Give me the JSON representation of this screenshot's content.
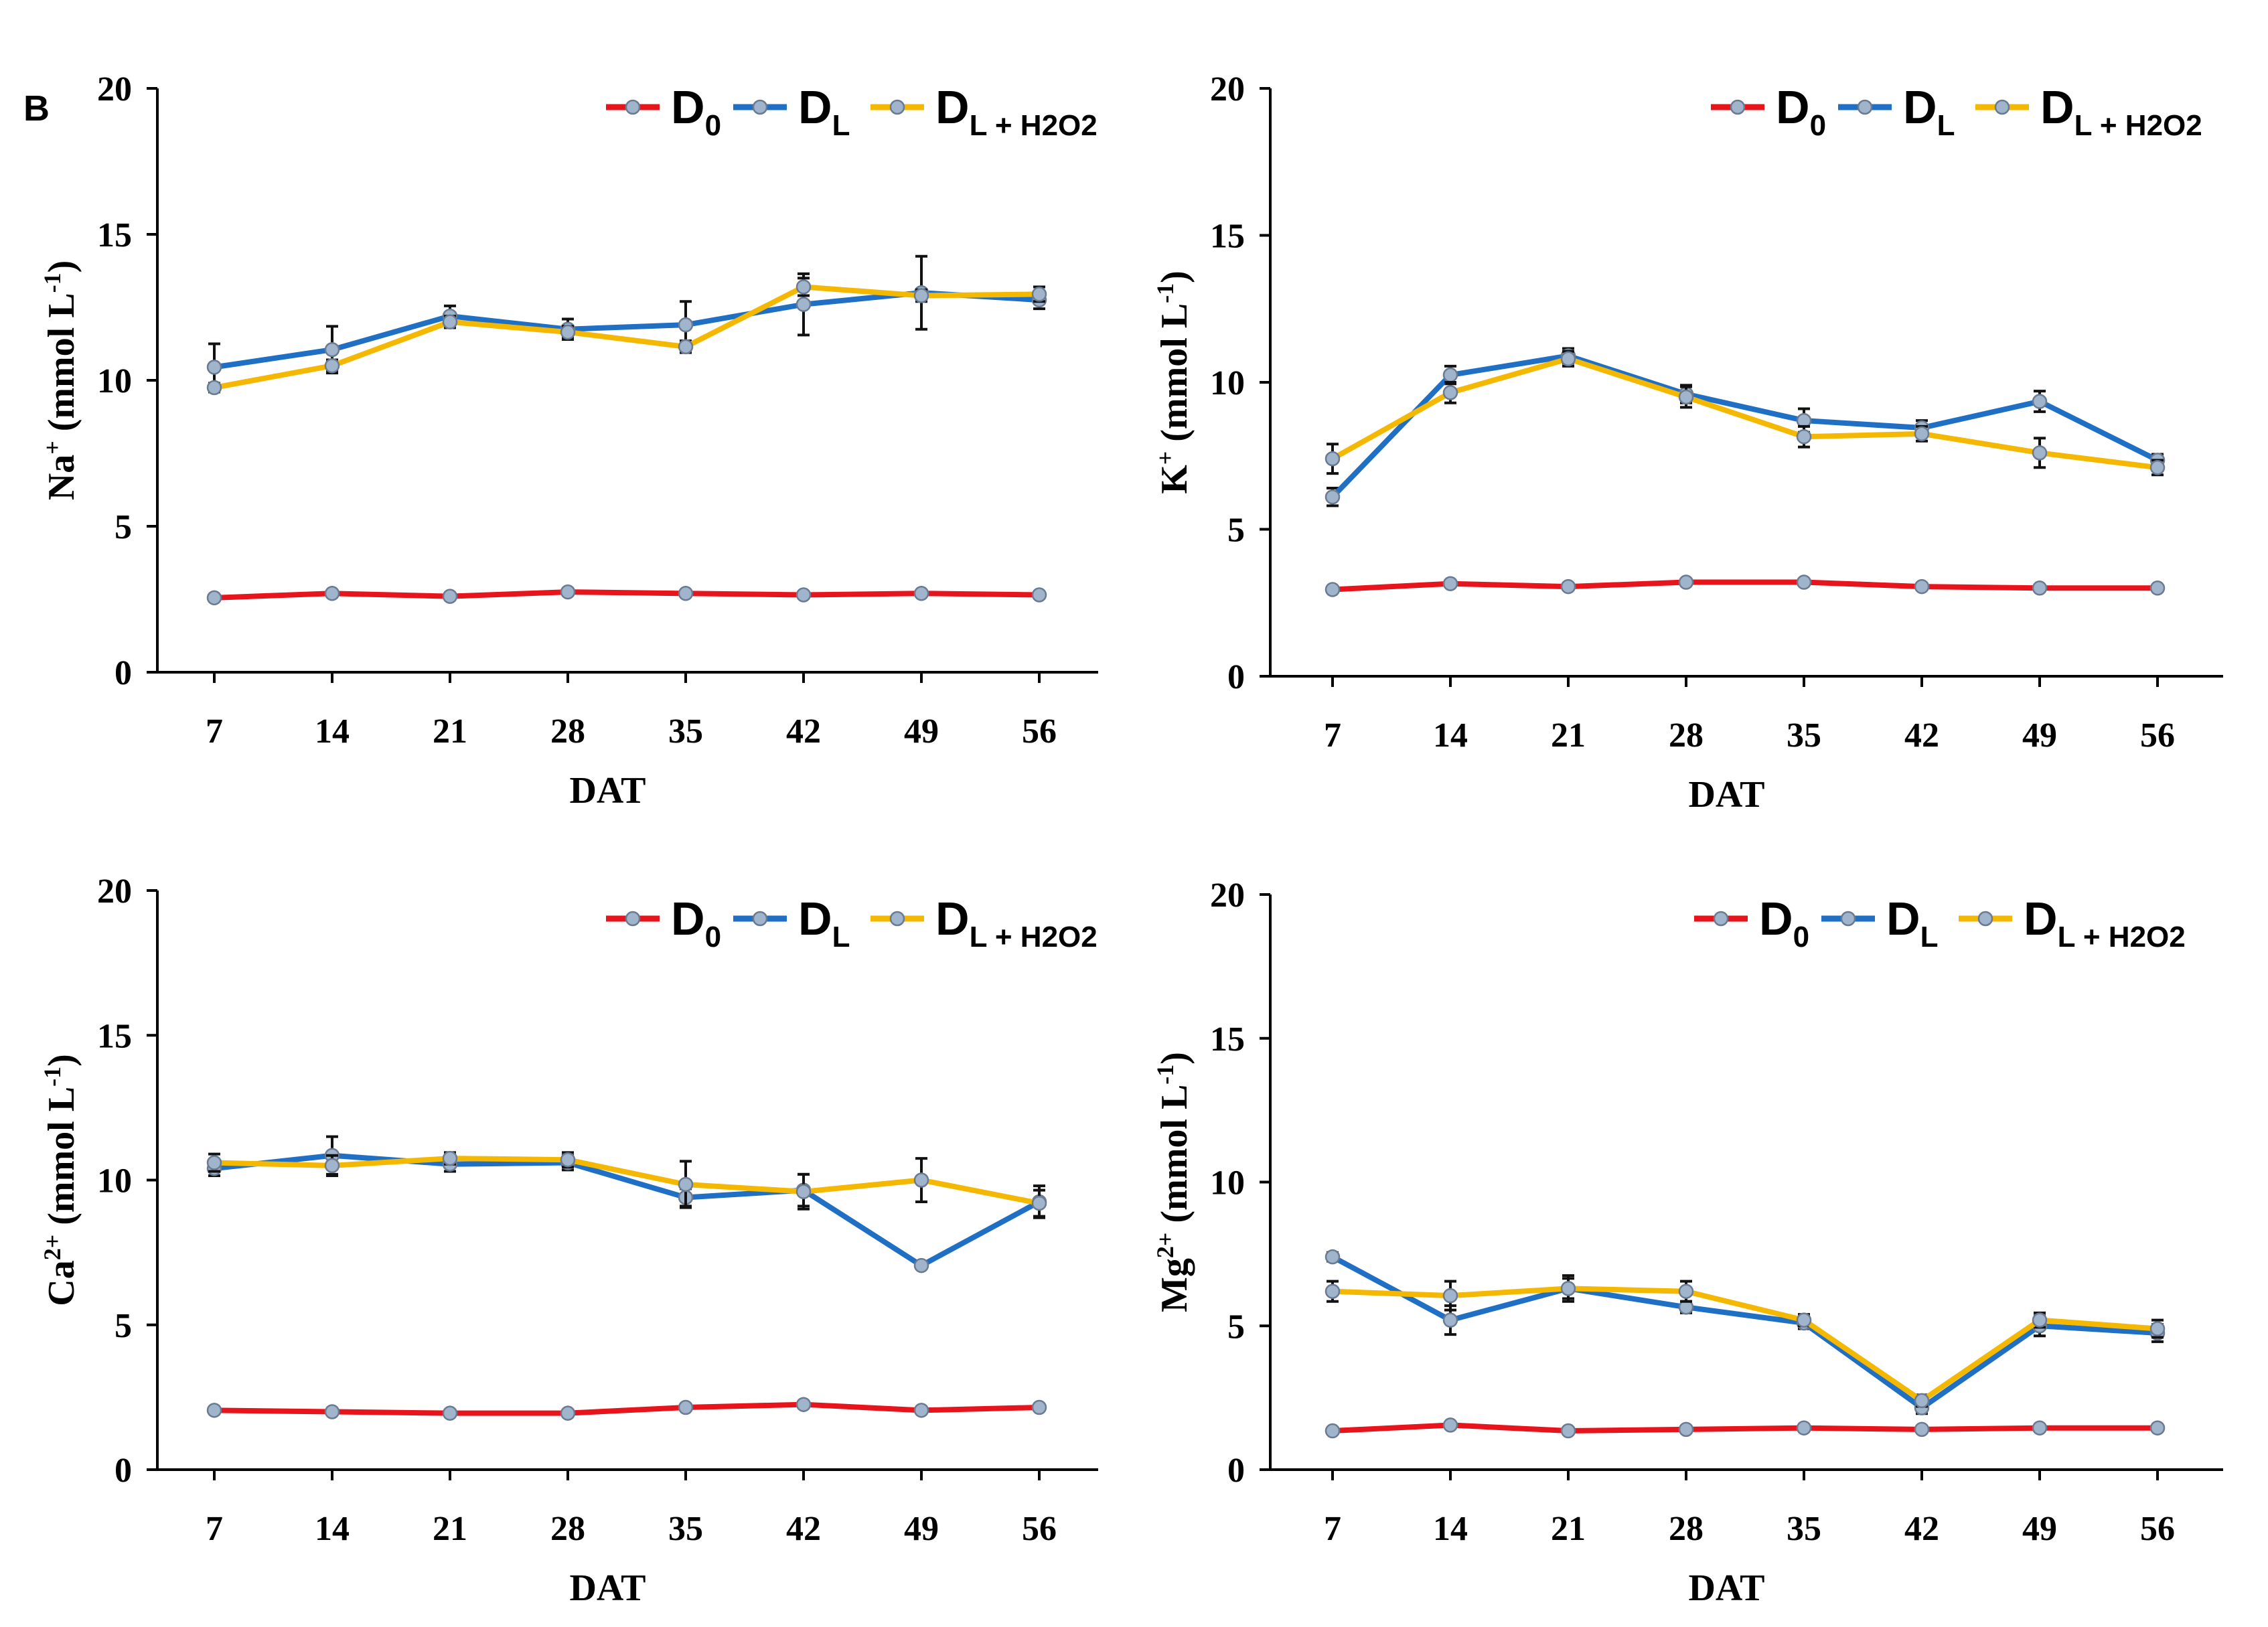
{
  "panel_label": "B",
  "colors": {
    "D0": "#e8141b",
    "DL": "#1f6fc4",
    "DLH": "#f5b800",
    "marker": "#a0b4cc",
    "axis": "#000000"
  },
  "legend": [
    {
      "key": "D0",
      "main": "D",
      "sub": "0"
    },
    {
      "key": "DL",
      "main": "D",
      "sub": "L"
    },
    {
      "key": "DLH",
      "main": "D",
      "sub": "L + H2O2"
    }
  ],
  "chart_data": [
    {
      "type": "line",
      "id": "na",
      "ylabel": {
        "ion": "Na",
        "sup": "+",
        "unit": " (mmol L",
        "unit_sup": "-1",
        "close": ")"
      },
      "xlabel": "DAT",
      "categories": [
        "7",
        "14",
        "21",
        "28",
        "35",
        "42",
        "49",
        "56"
      ],
      "ylim": [
        0,
        20
      ],
      "yticks": [
        "0",
        "5",
        "10",
        "15",
        "20"
      ],
      "series": [
        {
          "name": "D0",
          "values": [
            2.55,
            2.7,
            2.6,
            2.75,
            2.7,
            2.65,
            2.7,
            2.65
          ],
          "errors": [
            0.1,
            0.1,
            0.1,
            0.1,
            0.1,
            0.1,
            0.1,
            0.1
          ]
        },
        {
          "name": "DL",
          "values": [
            10.45,
            11.05,
            12.2,
            11.75,
            11.9,
            12.6,
            13.0,
            12.75
          ],
          "errors": [
            0.8,
            0.8,
            0.35,
            0.35,
            0.8,
            1.05,
            1.25,
            0.3
          ]
        },
        {
          "name": "DL + H2O2",
          "values": [
            9.75,
            10.5,
            12.0,
            11.65,
            11.15,
            13.2,
            12.9,
            12.95
          ],
          "errors": [
            0.15,
            0.2,
            0.2,
            0.2,
            0.2,
            0.3,
            0.2,
            0.25
          ]
        }
      ]
    },
    {
      "type": "line",
      "id": "k",
      "ylabel": {
        "ion": "K",
        "sup": "+",
        "unit": " (mmol L",
        "unit_sup": "-1",
        "close": ")"
      },
      "xlabel": "DAT",
      "categories": [
        "7",
        "14",
        "21",
        "28",
        "35",
        "42",
        "49",
        "56"
      ],
      "ylim": [
        0,
        20
      ],
      "yticks": [
        "0",
        "5",
        "10",
        "15",
        "20"
      ],
      "series": [
        {
          "name": "D0",
          "values": [
            2.95,
            3.15,
            3.05,
            3.2,
            3.2,
            3.05,
            3.0,
            3.0
          ],
          "errors": [
            0.1,
            0.1,
            0.1,
            0.1,
            0.1,
            0.1,
            0.1,
            0.1
          ]
        },
        {
          "name": "DL",
          "values": [
            6.1,
            10.25,
            10.9,
            9.6,
            8.7,
            8.45,
            9.35,
            7.35
          ],
          "errors": [
            0.3,
            0.3,
            0.25,
            0.3,
            0.4,
            0.25,
            0.35,
            0.2
          ]
        },
        {
          "name": "DL + H2O2",
          "values": [
            7.4,
            9.65,
            10.8,
            9.5,
            8.15,
            8.25,
            7.6,
            7.1
          ],
          "errors": [
            0.5,
            0.35,
            0.25,
            0.35,
            0.35,
            0.25,
            0.5,
            0.25
          ]
        }
      ]
    },
    {
      "type": "line",
      "id": "ca",
      "ylabel": {
        "ion": "Ca",
        "sup": "2+",
        "unit": " (mmol L",
        "unit_sup": "-1",
        "close": ")"
      },
      "xlabel": "DAT",
      "categories": [
        "7",
        "14",
        "21",
        "28",
        "35",
        "42",
        "49",
        "56"
      ],
      "ylim": [
        0,
        20
      ],
      "yticks": [
        "0",
        "5",
        "10",
        "15",
        "20"
      ],
      "series": [
        {
          "name": "D0",
          "values": [
            2.05,
            2.0,
            1.95,
            1.95,
            2.15,
            2.25,
            2.05,
            2.15
          ],
          "errors": [
            0.1,
            0.1,
            0.1,
            0.1,
            0.1,
            0.1,
            0.1,
            0.1
          ]
        },
        {
          "name": "DL",
          "values": [
            10.4,
            10.85,
            10.55,
            10.6,
            9.4,
            9.65,
            7.05,
            9.25
          ],
          "errors": [
            0.25,
            0.65,
            0.25,
            0.25,
            0.3,
            0.55,
            0.1,
            0.55
          ]
        },
        {
          "name": "DL + H2O2",
          "values": [
            10.6,
            10.5,
            10.75,
            10.7,
            9.85,
            9.6,
            10.0,
            9.2
          ],
          "errors": [
            0.3,
            0.35,
            0.2,
            0.25,
            0.8,
            0.6,
            0.75,
            0.45
          ]
        }
      ]
    },
    {
      "type": "line",
      "id": "mg",
      "ylabel": {
        "ion": "Mg",
        "sup": "2+",
        "unit": " (mmol L",
        "unit_sup": "-1",
        "close": ")"
      },
      "xlabel": "DAT",
      "categories": [
        "7",
        "14",
        "21",
        "28",
        "35",
        "42",
        "49",
        "56"
      ],
      "ylim": [
        0,
        20
      ],
      "yticks": [
        "0",
        "5",
        "10",
        "15",
        "20"
      ],
      "series": [
        {
          "name": "D0",
          "values": [
            1.35,
            1.55,
            1.35,
            1.4,
            1.45,
            1.4,
            1.45,
            1.45
          ],
          "errors": [
            0.1,
            0.1,
            0.1,
            0.1,
            0.1,
            0.1,
            0.1,
            0.1
          ]
        },
        {
          "name": "DL",
          "values": [
            7.4,
            5.2,
            6.3,
            5.65,
            5.1,
            2.15,
            5.0,
            4.75
          ],
          "errors": [
            0.15,
            0.5,
            0.35,
            0.2,
            0.2,
            0.2,
            0.35,
            0.3
          ]
        },
        {
          "name": "DL + H2O2",
          "values": [
            6.2,
            6.05,
            6.3,
            6.2,
            5.2,
            2.4,
            5.2,
            4.9
          ],
          "errors": [
            0.35,
            0.5,
            0.45,
            0.35,
            0.2,
            0.2,
            0.25,
            0.3
          ]
        }
      ]
    }
  ]
}
